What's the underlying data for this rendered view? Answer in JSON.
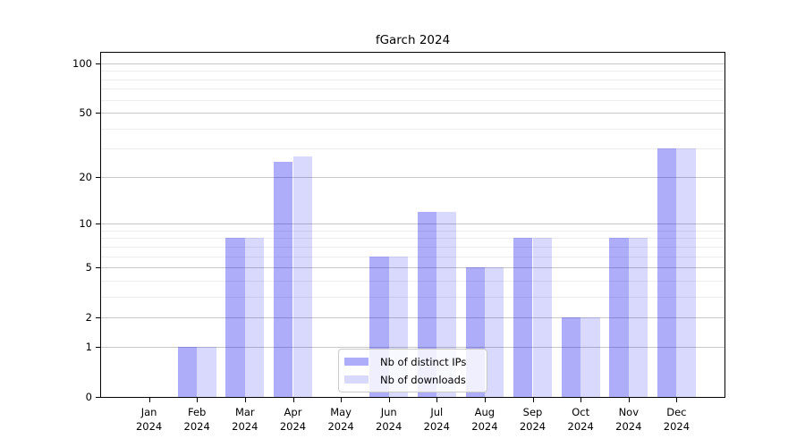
{
  "title": "fGarch 2024",
  "chart_data": {
    "type": "bar",
    "scale": "log1p",
    "title": "fGarch 2024",
    "categories": [
      "Jan",
      "Feb",
      "Mar",
      "Apr",
      "May",
      "Jun",
      "Jul",
      "Aug",
      "Sep",
      "Oct",
      "Nov",
      "Dec"
    ],
    "x_year_label": "2024",
    "series": [
      {
        "name": "Nb of distinct IPs",
        "color": "rgba(10,10,240,0.333)",
        "values": [
          0,
          1,
          8,
          25,
          0,
          6,
          12,
          5,
          8,
          2,
          8,
          30
        ]
      },
      {
        "name": "Nb of downloads",
        "color": "rgba(10,10,240,0.155)",
        "values": [
          0,
          1,
          8,
          27,
          0,
          6,
          12,
          5,
          8,
          2,
          8,
          30
        ]
      }
    ],
    "y_major_ticks": [
      0,
      1,
      2,
      5,
      10,
      20,
      50,
      100
    ],
    "y_minor_ticks": [
      3,
      4,
      6,
      7,
      8,
      9,
      30,
      40,
      60,
      70,
      80,
      90
    ],
    "ylim": [
      0,
      116
    ],
    "xlabel": "",
    "ylabel": "",
    "grid": true,
    "legend_position": "lower center"
  },
  "colors": {
    "grid_major": "#c8c8c8",
    "grid_minor": "#ededed",
    "axis": "#000000",
    "text": "#000000",
    "background": "#ffffff"
  }
}
